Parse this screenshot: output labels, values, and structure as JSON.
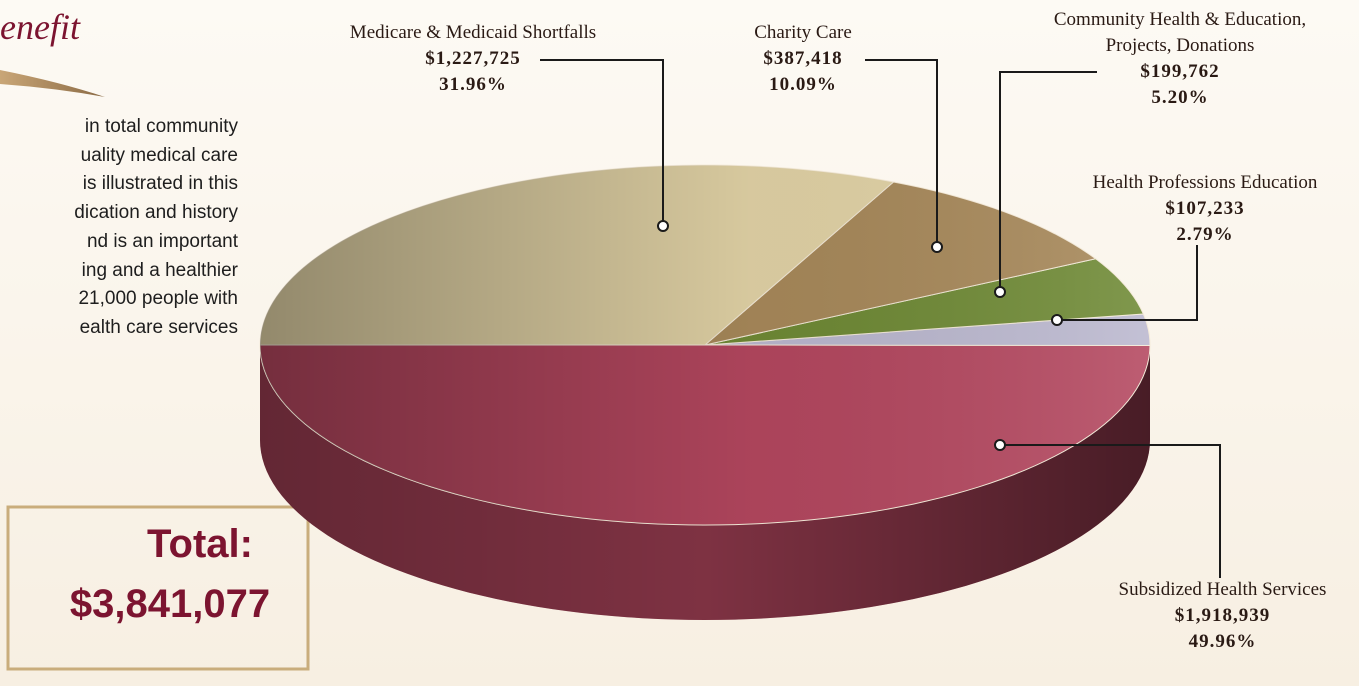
{
  "chart_data": {
    "type": "pie",
    "categories": [
      "Subsidized Health Services",
      "Health Professions Education",
      "Community Health & Education, Projects, Donations",
      "Charity Care",
      "Medicare & Medicaid Shortfalls"
    ],
    "values": [
      1918939,
      107233,
      199762,
      387418,
      1227725
    ],
    "value_labels": [
      "$1,918,939",
      "$107,233",
      "$199,762",
      "$387,418",
      "$1,227,725"
    ],
    "shares": [
      49.96,
      2.79,
      5.2,
      10.09,
      31.96
    ],
    "share_labels": [
      "49.96%",
      "2.79%",
      "5.20%",
      "10.09%",
      "31.96%"
    ],
    "colors": [
      "#b4475f",
      "#bbb8cf",
      "#6f8a35",
      "#a8895a",
      "#e2d3a6"
    ],
    "total_title": "Total:",
    "total_value": "$3,841,077"
  },
  "heading": "enefit",
  "paragraph": [
    "in total community",
    "uality medical care",
    "is illustrated in this",
    "dication and history",
    "nd is an important",
    "ing and a healthier",
    "21,000 people with",
    "ealth care services"
  ]
}
